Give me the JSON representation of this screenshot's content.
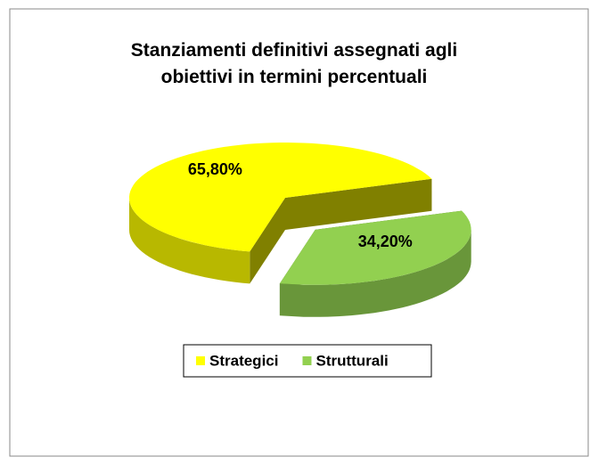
{
  "chart_data": {
    "type": "pie",
    "title": "Stanziamenti definitivi assegnati agli obiettivi in termini percentuali",
    "categories": [
      "Strategici",
      "Strutturali"
    ],
    "values": [
      65.8,
      34.2
    ],
    "value_labels": [
      "65,80%",
      "34,20%"
    ],
    "colors": [
      "#ffff00",
      "#92d050"
    ],
    "legend": "bottom"
  }
}
